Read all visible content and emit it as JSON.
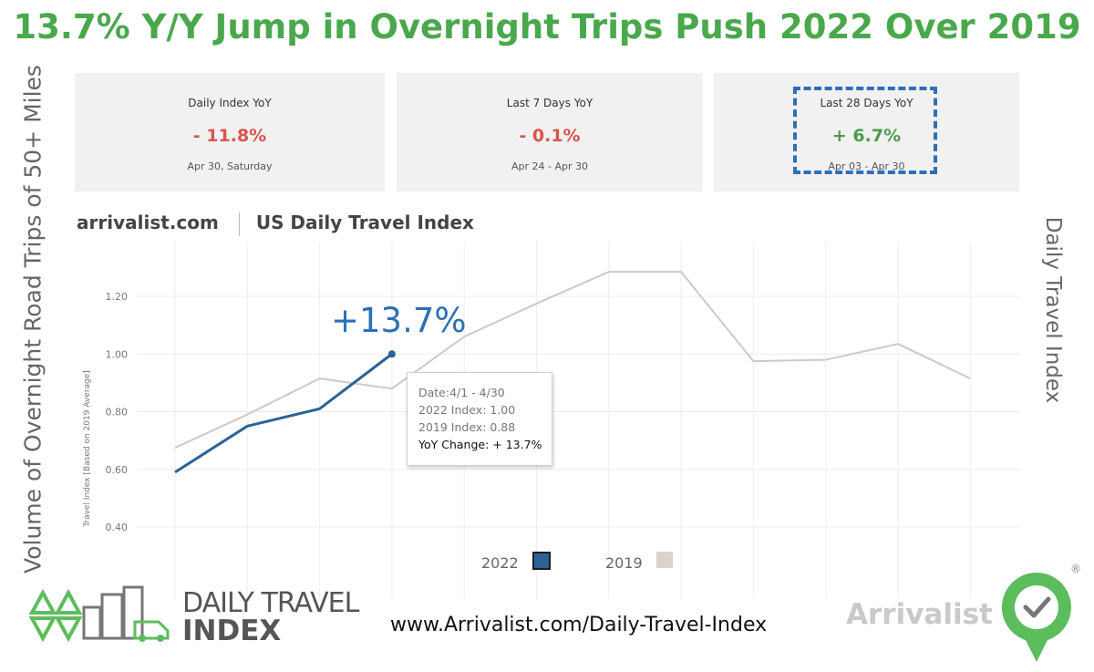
{
  "headline": "13.7% Y/Y Jump in Overnight Trips Push 2022 Over 2019",
  "side_left_label": "Volume of Overnight Road Trips of 50+ Miles",
  "side_right_label": "Daily Travel Index",
  "cards": [
    {
      "title": "Daily Index YoY",
      "value": "- 11.8%",
      "sub": "Apr 30, Saturday",
      "tone": "neg"
    },
    {
      "title": "Last 7 Days YoY",
      "value": "- 0.1%",
      "sub": "Apr 24 - Apr 30",
      "tone": "neg"
    },
    {
      "title": "Last 28 Days YoY",
      "value": "+ 6.7%",
      "sub": "Apr 03 - Apr 30",
      "tone": "pos"
    }
  ],
  "brand": {
    "site": "arrivalist.com",
    "title": "US Daily Travel Index"
  },
  "annotation": "+13.7%",
  "tooltip": {
    "date": "Date:4/1 - 4/30",
    "index_2022": "2022 Index: 1.00",
    "index_2019": "2019 Index: 0.88",
    "change": "YoY Change: + 13.7%"
  },
  "footer": {
    "url": "www.Arrivalist.com/Daily-Travel-Index",
    "logo_line1": "DAILY TRAVEL",
    "logo_line2": "INDEX",
    "company": "Arrivalist",
    "registered": "®"
  },
  "colors": {
    "series_2022": "#2c6296",
    "series_2019": "#cfc9c4",
    "headline": "#4aa84c",
    "highlight": "#2c6fb8"
  },
  "chart_data": {
    "type": "line",
    "ylabel": "Travel Index [Based on 2019 Average]",
    "ylim": [
      0.4,
      1.3
    ],
    "yticks": [
      "1.20",
      "1.00",
      "0.80",
      "0.60",
      "0.40"
    ],
    "ytick_values": [
      1.2,
      1.0,
      0.8,
      0.6,
      0.4
    ],
    "grid": true,
    "legend": "bottom",
    "series": [
      {
        "name": "2022",
        "values": [
          0.59,
          0.75,
          0.81,
          1.0
        ]
      },
      {
        "name": "2019",
        "values": [
          0.675,
          0.79,
          0.915,
          0.88,
          1.06,
          1.175,
          1.285,
          1.285,
          0.975,
          0.98,
          1.035,
          0.915
        ]
      }
    ]
  }
}
